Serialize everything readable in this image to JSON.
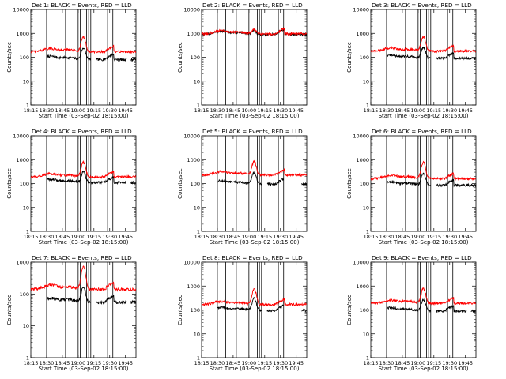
{
  "figure": {
    "x_ticks": [
      "18:15",
      "18:30",
      "18:45",
      "19:00",
      "19:15",
      "19:30",
      "19:45"
    ],
    "y_ticks": [
      "1",
      "10",
      "100",
      "1000",
      "10000"
    ],
    "xlabel": "Start Time (03-Sep-02 18:15:00)",
    "ylabel": "Counts/sec",
    "colors": {
      "black_series": "#000000",
      "red_series": "#ff0000",
      "markers": "#000000"
    }
  },
  "chart_data": [
    {
      "type": "line",
      "title": "Det 1: BLACK = Events, RED = LLD",
      "xlabel": "Start Time (03-Sep-02 18:15:00)",
      "ylabel": "Counts/sec",
      "x_ticks": [
        "18:15",
        "18:30",
        "18:45",
        "19:00",
        "19:15",
        "19:30",
        "19:45"
      ],
      "y_scale": "log",
      "ylim": [
        1,
        10000
      ],
      "series": [
        {
          "name": "Events",
          "color": "#000000",
          "baseline": 80,
          "peak": 240,
          "gaps": [
            [
              "18:15",
              "18:30"
            ],
            [
              "19:12",
              "19:17"
            ],
            [
              "19:46",
              "19:50"
            ]
          ]
        },
        {
          "name": "LLD",
          "color": "#ff0000",
          "baseline": 170,
          "peak": 700
        }
      ],
      "markers": [
        "18:30",
        "18:38",
        "18:48",
        "19:00",
        "19:02",
        "19:08",
        "19:10",
        "19:12",
        "19:28",
        "19:33"
      ]
    },
    {
      "type": "line",
      "title": "Det 2: BLACK = Events, RED = LLD",
      "xlabel": "Start Time (03-Sep-02 18:15:00)",
      "ylabel": "Counts/sec",
      "x_ticks": [
        "18:15",
        "18:30",
        "18:45",
        "19:00",
        "19:15",
        "19:30",
        "19:45"
      ],
      "y_scale": "log",
      "ylim": [
        1,
        10000
      ],
      "series": [
        {
          "name": "Events",
          "color": "#000000",
          "baseline": 900,
          "peak": 1300,
          "gaps": []
        },
        {
          "name": "LLD",
          "color": "#ff0000",
          "baseline": 950,
          "peak": 1400
        }
      ],
      "markers": [
        "18:30",
        "18:38",
        "18:48",
        "19:00",
        "19:02",
        "19:08",
        "19:10",
        "19:12",
        "19:28",
        "19:33"
      ]
    },
    {
      "type": "line",
      "title": "Det 3: BLACK = Events, RED = LLD",
      "xlabel": "Start Time (03-Sep-02 18:15:00)",
      "ylabel": "Counts/sec",
      "x_ticks": [
        "18:15",
        "18:30",
        "18:45",
        "19:00",
        "19:15",
        "19:30",
        "19:45"
      ],
      "y_scale": "log",
      "ylim": [
        1,
        10000
      ],
      "series": [
        {
          "name": "Events",
          "color": "#000000",
          "baseline": 90,
          "peak": 260,
          "gaps": [
            [
              "18:15",
              "18:30"
            ],
            [
              "19:12",
              "19:17"
            ]
          ]
        },
        {
          "name": "LLD",
          "color": "#ff0000",
          "baseline": 180,
          "peak": 720
        }
      ],
      "markers": [
        "18:30",
        "18:38",
        "18:48",
        "19:00",
        "19:02",
        "19:08",
        "19:10",
        "19:12",
        "19:28",
        "19:33"
      ]
    },
    {
      "type": "line",
      "title": "Det 4: BLACK = Events, RED = LLD",
      "xlabel": "Start Time (03-Sep-02 18:15:00)",
      "ylabel": "Counts/sec",
      "x_ticks": [
        "18:15",
        "18:30",
        "18:45",
        "19:00",
        "19:15",
        "19:30",
        "19:45"
      ],
      "y_scale": "log",
      "ylim": [
        1,
        10000
      ],
      "series": [
        {
          "name": "Events",
          "color": "#000000",
          "baseline": 110,
          "peak": 300,
          "gaps": [
            [
              "18:15",
              "18:30"
            ],
            [
              "19:46",
              "19:50"
            ]
          ]
        },
        {
          "name": "LLD",
          "color": "#ff0000",
          "baseline": 190,
          "peak": 750
        }
      ],
      "markers": [
        "18:30",
        "18:38",
        "18:48",
        "19:00",
        "19:02",
        "19:08",
        "19:10",
        "19:12",
        "19:28",
        "19:33"
      ]
    },
    {
      "type": "line",
      "title": "Det 5: BLACK = Events, RED = LLD",
      "xlabel": "Start Time (03-Sep-02 18:15:00)",
      "ylabel": "Counts/sec",
      "x_ticks": [
        "18:15",
        "18:30",
        "18:45",
        "19:00",
        "19:15",
        "19:30",
        "19:45"
      ],
      "y_scale": "log",
      "ylim": [
        1,
        10000
      ],
      "series": [
        {
          "name": "Events",
          "color": "#000000",
          "baseline": 95,
          "peak": 280,
          "gaps": [
            [
              "18:15",
              "18:30"
            ],
            [
              "19:12",
              "19:17"
            ],
            [
              "19:33",
              "19:50"
            ]
          ]
        },
        {
          "name": "LLD",
          "color": "#ff0000",
          "baseline": 230,
          "peak": 800
        }
      ],
      "markers": [
        "18:30",
        "18:38",
        "18:48",
        "19:00",
        "19:02",
        "19:08",
        "19:10",
        "19:12",
        "19:28",
        "19:33"
      ]
    },
    {
      "type": "line",
      "title": "Det 6: BLACK = Events, RED = LLD",
      "xlabel": "Start Time (03-Sep-02 18:15:00)",
      "ylabel": "Counts/sec",
      "x_ticks": [
        "18:15",
        "18:30",
        "18:45",
        "19:00",
        "19:15",
        "19:30",
        "19:45"
      ],
      "y_scale": "log",
      "ylim": [
        1,
        10000
      ],
      "series": [
        {
          "name": "Events",
          "color": "#000000",
          "baseline": 85,
          "peak": 260,
          "gaps": [
            [
              "18:15",
              "18:30"
            ],
            [
              "19:12",
              "19:17"
            ]
          ]
        },
        {
          "name": "LLD",
          "color": "#ff0000",
          "baseline": 160,
          "peak": 760
        }
      ],
      "markers": [
        "18:30",
        "18:38",
        "18:48",
        "19:00",
        "19:02",
        "19:08",
        "19:10",
        "19:12",
        "19:28",
        "19:33"
      ]
    },
    {
      "type": "line",
      "title": "Det 7: BLACK = Events, RED = LLD",
      "xlabel": "Start Time (03-Sep-02 18:15:00)",
      "ylabel": "Counts/sec",
      "x_ticks": [
        "18:15",
        "18:30",
        "18:45",
        "19:00",
        "19:15",
        "19:30",
        "19:45"
      ],
      "y_scale": "log",
      "ylim": [
        1,
        1000
      ],
      "series": [
        {
          "name": "Events",
          "color": "#000000",
          "baseline": 55,
          "peak": 160,
          "gaps": [
            [
              "18:15",
              "18:30"
            ],
            [
              "19:12",
              "19:17"
            ],
            [
              "19:46",
              "19:50"
            ]
          ]
        },
        {
          "name": "LLD",
          "color": "#ff0000",
          "baseline": 140,
          "peak": 700
        }
      ],
      "markers": [
        "18:30",
        "18:38",
        "18:48",
        "19:00",
        "19:02",
        "19:08",
        "19:10",
        "19:12",
        "19:28",
        "19:33"
      ]
    },
    {
      "type": "line",
      "title": "Det 8: BLACK = Events, RED = LLD",
      "xlabel": "Start Time (03-Sep-02 18:15:00)",
      "ylabel": "Counts/sec",
      "x_ticks": [
        "18:15",
        "18:30",
        "18:45",
        "19:00",
        "19:15",
        "19:30",
        "19:45"
      ],
      "y_scale": "log",
      "ylim": [
        1,
        10000
      ],
      "series": [
        {
          "name": "Events",
          "color": "#000000",
          "baseline": 95,
          "peak": 300,
          "gaps": [
            [
              "18:15",
              "18:30"
            ],
            [
              "19:12",
              "19:17"
            ],
            [
              "19:33",
              "19:50"
            ]
          ]
        },
        {
          "name": "LLD",
          "color": "#ff0000",
          "baseline": 170,
          "peak": 720
        }
      ],
      "markers": [
        "18:30",
        "18:38",
        "18:48",
        "19:00",
        "19:02",
        "19:08",
        "19:10",
        "19:12",
        "19:28",
        "19:33"
      ]
    },
    {
      "type": "line",
      "title": "Det 9: BLACK = Events, RED = LLD",
      "xlabel": "Start Time (03-Sep-02 18:15:00)",
      "ylabel": "Counts/sec",
      "x_ticks": [
        "18:15",
        "18:30",
        "18:45",
        "19:00",
        "19:15",
        "19:30",
        "19:45"
      ],
      "y_scale": "log",
      "ylim": [
        1,
        10000
      ],
      "series": [
        {
          "name": "Events",
          "color": "#000000",
          "baseline": 90,
          "peak": 260,
          "gaps": [
            [
              "18:15",
              "18:30"
            ],
            [
              "19:12",
              "19:17"
            ],
            [
              "19:46",
              "19:50"
            ]
          ]
        },
        {
          "name": "LLD",
          "color": "#ff0000",
          "baseline": 190,
          "peak": 760
        }
      ],
      "markers": [
        "18:30",
        "18:38",
        "18:48",
        "19:00",
        "19:02",
        "19:08",
        "19:10",
        "19:12",
        "19:28",
        "19:33"
      ]
    }
  ]
}
